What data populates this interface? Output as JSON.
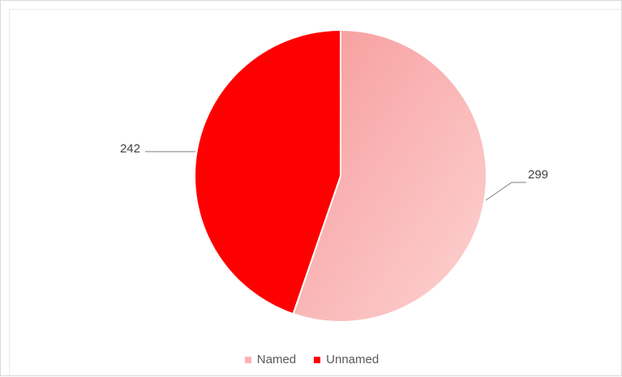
{
  "chart_data": {
    "type": "pie",
    "categories": [
      "Named",
      "Unnamed"
    ],
    "values": [
      299,
      242
    ],
    "data_labels": [
      "299",
      "242"
    ],
    "colors": [
      "#fbb0b0",
      "#ff0000"
    ],
    "legend_position": "bottom",
    "start_angle_deg": 0,
    "direction": "clockwise"
  }
}
